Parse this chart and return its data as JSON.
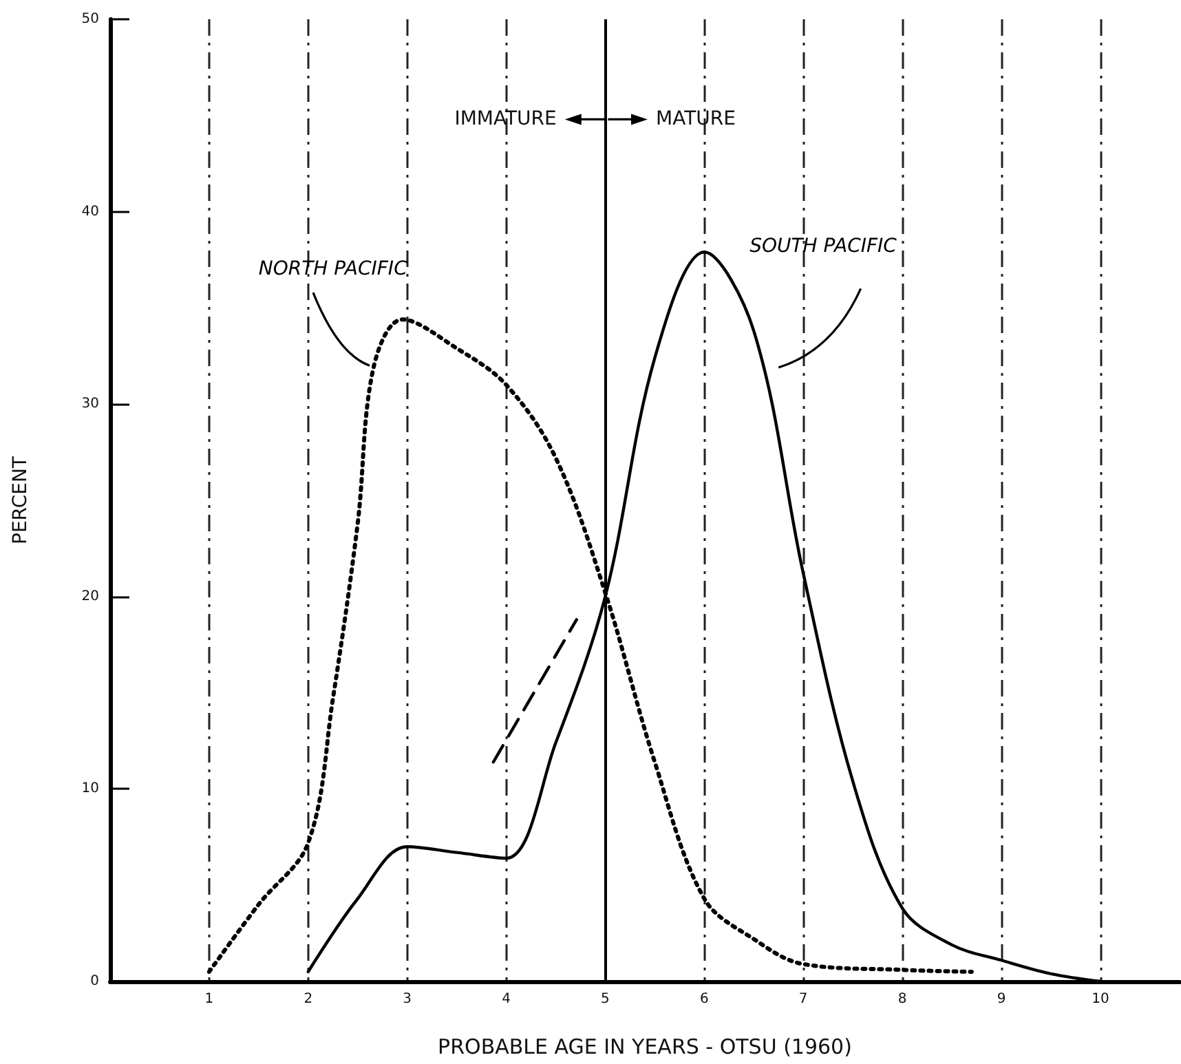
{
  "chart_data": {
    "type": "line",
    "xlabel": "PROBABLE AGE IN YEARS - OTSU (1960)",
    "ylabel": "PERCENT",
    "xlim": [
      0,
      10.8
    ],
    "xticks": [
      1,
      2,
      3,
      4,
      5,
      6,
      7,
      8,
      9,
      10
    ],
    "ylim": [
      0,
      50
    ],
    "yticks": [
      0,
      10,
      20,
      30,
      40,
      50
    ],
    "grid": "x",
    "legend": false,
    "marker": "none",
    "annotations": [
      "IMMATURE",
      "MATURE"
    ],
    "ref_lines": [
      {
        "axis": "x",
        "value": 5,
        "color": "#000000",
        "line_style": "solid"
      }
    ],
    "series": [
      {
        "name": "NORTH PACIFIC",
        "color": "#000000",
        "line_style": "dotted",
        "x": [
          1,
          1.5,
          2,
          2.25,
          2.5,
          2.66,
          2.95,
          3.5,
          4,
          4.5,
          5,
          5.5,
          6,
          6.5,
          7,
          8,
          8.7
        ],
        "values": [
          0.5,
          4.0,
          7.2,
          14.7,
          23.8,
          31.9,
          34.4,
          32.9,
          31,
          27.2,
          20.2,
          11.4,
          4.3,
          2.2,
          0.9,
          0.6,
          0.5
        ]
      },
      {
        "name": "SOUTH PACIFIC",
        "color": "#000000",
        "line_style": "solid",
        "x": [
          2,
          2.5,
          3,
          3.5,
          4,
          4.5,
          5,
          5.5,
          6,
          6.5,
          7,
          7.5,
          8,
          8.5,
          9,
          9.5,
          10
        ],
        "values": [
          0.5,
          4.3,
          7.0,
          6.7,
          6.4,
          12.4,
          20,
          32.4,
          37.9,
          33.8,
          21.2,
          10.4,
          3.8,
          1.9,
          1.1,
          0.4,
          0
        ]
      },
      {
        "color": "#000000",
        "line_style": "dashed",
        "x": [
          3.87,
          4.71
        ],
        "values": [
          11.4,
          18.8
        ]
      }
    ]
  }
}
